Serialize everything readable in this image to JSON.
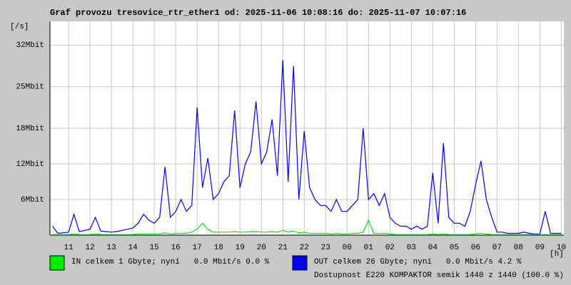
{
  "chart_data": {
    "type": "line",
    "title": "Graf provozu tresovice_rtr_ether1 od: 2025-11-06 10:08:16 do: 2025-11-07 10:07:16",
    "y_unit": "[/s]",
    "x_unit": "[h]",
    "annotation": "Dostupnost E220 KOMPAKTOR semik 1440 z 1440 (100.0 %)",
    "annotation_color": "#ee0000",
    "grid": true,
    "xlim": [
      10.13,
      34.12
    ],
    "ylim": [
      0,
      36
    ],
    "yticks": [
      {
        "value": 6,
        "label": "6Mbit"
      },
      {
        "value": 12,
        "label": "12Mbit"
      },
      {
        "value": 18,
        "label": "18Mbit"
      },
      {
        "value": 25,
        "label": "25Mbit"
      },
      {
        "value": 32,
        "label": "32Mbit"
      }
    ],
    "xticks": [
      11,
      12,
      13,
      14,
      15,
      16,
      17,
      18,
      19,
      20,
      21,
      22,
      23,
      {
        "value": 24,
        "label": "00"
      },
      {
        "value": 25,
        "label": "01"
      },
      {
        "value": 26,
        "label": "02"
      },
      {
        "value": 27,
        "label": "03"
      },
      {
        "value": 28,
        "label": "04"
      },
      {
        "value": 29,
        "label": "05"
      },
      {
        "value": 30,
        "label": "06"
      },
      {
        "value": 31,
        "label": "07"
      },
      {
        "value": 32,
        "label": "08"
      },
      {
        "value": 33,
        "label": "09"
      },
      {
        "value": 34,
        "label": "10"
      }
    ],
    "x": [
      10.25,
      10.5,
      10.75,
      11,
      11.25,
      11.5,
      11.75,
      12,
      12.25,
      12.5,
      12.75,
      13,
      13.25,
      13.5,
      13.75,
      14,
      14.25,
      14.5,
      14.75,
      15,
      15.25,
      15.5,
      15.75,
      16,
      16.25,
      16.5,
      16.75,
      17,
      17.25,
      17.5,
      17.75,
      18,
      18.25,
      18.5,
      18.75,
      19,
      19.25,
      19.5,
      19.75,
      20,
      20.25,
      20.5,
      20.75,
      21,
      21.25,
      21.5,
      21.75,
      22,
      22.25,
      22.5,
      22.75,
      23,
      23.25,
      23.5,
      23.75,
      24,
      24.25,
      24.5,
      24.75,
      25,
      25.25,
      25.5,
      25.75,
      26,
      26.25,
      26.5,
      26.75,
      27,
      27.25,
      27.5,
      27.75,
      28,
      28.25,
      28.5,
      28.75,
      29,
      29.25,
      29.5,
      29.75,
      30,
      30.25,
      30.5,
      30.75,
      31,
      31.25,
      31.5,
      31.75,
      32,
      32.25,
      32.5,
      32.75,
      33,
      33.25,
      33.5,
      33.75,
      34
    ],
    "series": [
      {
        "name": "OUT celkem 26 Gbyte; nyní   0.0 Mbit/s 4.2 %",
        "color": "#0000ff",
        "values": [
          1.5,
          0.3,
          0.4,
          0.5,
          3.5,
          0.6,
          0.8,
          1,
          3,
          0.7,
          0.6,
          0.5,
          0.6,
          0.8,
          1,
          1.2,
          2,
          3.5,
          2.5,
          2,
          3,
          11.5,
          3,
          4,
          6,
          4,
          5,
          21.5,
          8,
          13,
          6,
          7,
          9,
          10,
          21,
          8,
          12,
          14,
          22.5,
          12,
          14,
          19.5,
          10,
          29.5,
          9,
          28.5,
          6,
          17.5,
          8,
          6,
          5,
          5,
          4,
          6,
          4,
          4,
          5,
          6,
          18,
          6,
          7,
          5,
          7,
          3,
          2,
          1.5,
          1.5,
          1,
          1.5,
          1,
          1.5,
          10.5,
          2,
          15.5,
          3,
          2,
          2,
          1.5,
          4,
          8.5,
          12.5,
          6,
          3,
          0.5,
          0.5,
          0.3,
          0.3,
          0.3,
          0.5,
          0.3,
          0.2,
          0.2,
          4,
          0.3,
          0.3,
          0.3
        ]
      },
      {
        "name": "IN celkem 1 Gbyte; nyní   0.0 Mbit/s 0.0 %",
        "color": "#00ee00",
        "values": [
          0.1,
          0.1,
          0.1,
          0.1,
          0.2,
          0.1,
          0.1,
          0.1,
          0.2,
          0.1,
          0.1,
          0.1,
          0.1,
          0.1,
          0.1,
          0.1,
          0.2,
          0.2,
          0.2,
          0.2,
          0.2,
          0.4,
          0.2,
          0.3,
          0.3,
          0.3,
          0.5,
          1,
          2,
          1,
          0.5,
          0.5,
          0.5,
          0.5,
          0.6,
          0.5,
          0.5,
          0.6,
          0.6,
          0.5,
          0.5,
          0.6,
          0.5,
          0.8,
          0.5,
          0.7,
          0.4,
          0.5,
          0.3,
          0.3,
          0.3,
          0.3,
          0.2,
          0.3,
          0.2,
          0.2,
          0.3,
          0.3,
          0.5,
          2.5,
          0.3,
          0.3,
          0.3,
          0.2,
          0.1,
          0.1,
          0.1,
          0.1,
          0.1,
          0.1,
          0.1,
          0.2,
          0.1,
          0.2,
          0.1,
          0.1,
          0.1,
          0.1,
          0.1,
          0.2,
          0.3,
          0.2,
          0.1,
          0.1,
          0.1,
          0.1,
          0.1,
          0.1,
          0.1,
          0.1,
          0.1,
          0.1,
          0.1,
          0.1,
          0.1,
          0.1
        ]
      }
    ]
  }
}
